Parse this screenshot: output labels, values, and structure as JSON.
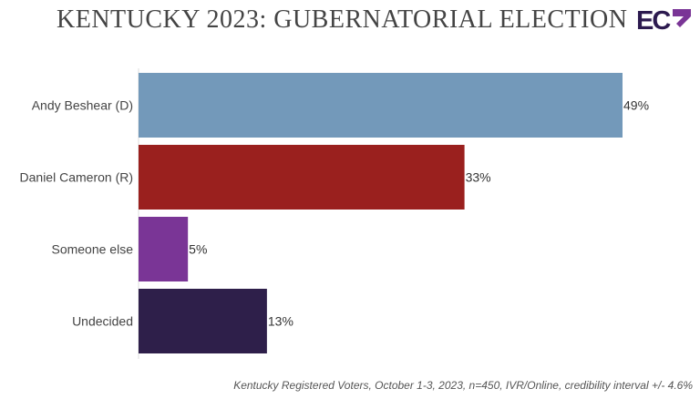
{
  "title": "KENTUCKY 2023: GUBERNATORIAL ELECTION",
  "logo_text": "ECP",
  "footnote": "Kentucky Registered Voters, October 1-3, 2023, n=450, IVR/Online, credibility interval +/- 4.6%",
  "chart_data": {
    "type": "bar",
    "orientation": "horizontal",
    "categories": [
      "Andy Beshear (D)",
      "Daniel Cameron (R)",
      "Someone else",
      "Undecided"
    ],
    "values": [
      49,
      33,
      5,
      13
    ],
    "data_labels": [
      "49%",
      "33%",
      "5%",
      "13%"
    ],
    "colors": [
      "#7399ba",
      "#9a201e",
      "#7a3596",
      "#2e1f4a"
    ],
    "xlim": [
      0,
      49
    ],
    "grid": false
  }
}
